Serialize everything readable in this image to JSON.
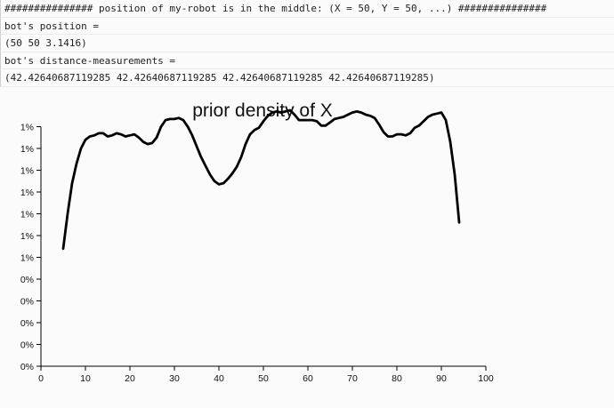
{
  "console": {
    "lines": [
      "############### position of my-robot is in the middle: (X = 50, Y = 50, ...) ###############",
      "bot's position =",
      "(50 50 3.1416)",
      "bot's distance-measurements =",
      "(42.42640687119285 42.42640687119285 42.42640687119285 42.42640687119285)"
    ]
  },
  "chart_data": {
    "type": "line",
    "title": "prior density of X",
    "xlabel": "",
    "ylabel": "",
    "xlim": [
      0,
      100
    ],
    "x_ticks": [
      "0",
      "10",
      "20",
      "30",
      "40",
      "50",
      "60",
      "70",
      "80",
      "90",
      "100"
    ],
    "y_ticks": [
      "0%",
      "0%",
      "0%",
      "0%",
      "0%",
      "1%",
      "1%",
      "1%",
      "1%",
      "1%",
      "1%",
      "1%"
    ],
    "legend": "none",
    "grid": false,
    "series": [
      {
        "color": "#000000",
        "x": [
          5,
          6,
          7,
          8,
          9,
          10,
          11,
          12,
          13,
          14,
          15,
          16,
          17,
          18,
          19,
          20,
          21,
          22,
          23,
          24,
          25,
          26,
          27,
          28,
          29,
          30,
          31,
          32,
          33,
          34,
          35,
          36,
          37,
          38,
          39,
          40,
          41,
          42,
          43,
          44,
          45,
          46,
          47,
          48,
          49,
          50,
          51,
          52,
          53,
          54,
          55,
          56,
          57,
          58,
          59,
          60,
          61,
          62,
          63,
          64,
          65,
          66,
          67,
          68,
          69,
          70,
          71,
          72,
          73,
          74,
          75,
          76,
          77,
          78,
          79,
          80,
          81,
          82,
          83,
          84,
          85,
          86,
          87,
          88,
          89,
          90,
          91,
          92,
          93,
          94
        ],
        "y": [
          5.4,
          7.0,
          8.4,
          9.3,
          10.0,
          10.4,
          10.55,
          10.6,
          10.7,
          10.7,
          10.55,
          10.6,
          10.7,
          10.65,
          10.55,
          10.6,
          10.65,
          10.5,
          10.3,
          10.2,
          10.25,
          10.5,
          11.0,
          11.3,
          11.35,
          11.35,
          11.4,
          11.3,
          11.0,
          10.6,
          10.1,
          9.6,
          9.2,
          8.8,
          8.5,
          8.35,
          8.4,
          8.6,
          8.85,
          9.15,
          9.6,
          10.2,
          10.65,
          10.85,
          10.95,
          11.25,
          11.5,
          11.65,
          11.7,
          11.65,
          11.7,
          11.75,
          11.55,
          11.3,
          11.3,
          11.3,
          11.3,
          11.25,
          11.05,
          11.05,
          11.2,
          11.35,
          11.4,
          11.45,
          11.55,
          11.65,
          11.7,
          11.65,
          11.55,
          11.5,
          11.4,
          11.1,
          10.75,
          10.55,
          10.55,
          10.65,
          10.65,
          10.6,
          10.7,
          10.95,
          11.05,
          11.25,
          11.45,
          11.55,
          11.6,
          11.65,
          11.3,
          10.3,
          8.8,
          6.6
        ]
      }
    ]
  }
}
